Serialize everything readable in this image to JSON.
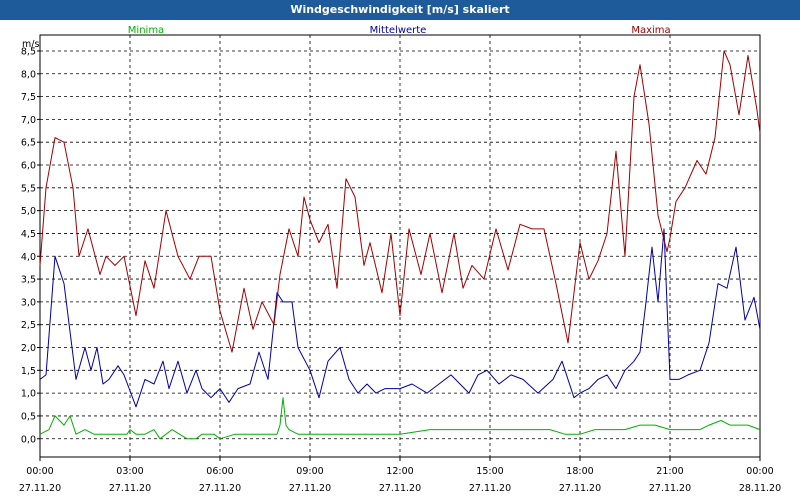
{
  "window": {
    "title": "Windgeschwindigkeit [m/s] skaliert"
  },
  "colors": {
    "titlebar": "#1e5b9a",
    "min": "#00b000",
    "mean": "#0000a0",
    "max": "#a00000",
    "grid": "#000000"
  },
  "chart_data": {
    "type": "line",
    "title": "Windgeschwindigkeit [m/s] skaliert",
    "ylabel": "m/s",
    "xlabel": "",
    "ylim": [
      -0.4,
      8.85
    ],
    "xlim": [
      0,
      24
    ],
    "grid": "dashed",
    "y_ticks": [
      {
        "value": 0.0,
        "label": "0,0"
      },
      {
        "value": 0.5,
        "label": "0,5"
      },
      {
        "value": 1.0,
        "label": "1,0"
      },
      {
        "value": 1.5,
        "label": "1,5"
      },
      {
        "value": 2.0,
        "label": "2,0"
      },
      {
        "value": 2.5,
        "label": "2,5"
      },
      {
        "value": 3.0,
        "label": "3,0"
      },
      {
        "value": 3.5,
        "label": "3,5"
      },
      {
        "value": 4.0,
        "label": "4,0"
      },
      {
        "value": 4.5,
        "label": "4,5"
      },
      {
        "value": 5.0,
        "label": "5,0"
      },
      {
        "value": 5.5,
        "label": "5,5"
      },
      {
        "value": 6.0,
        "label": "6,0"
      },
      {
        "value": 6.5,
        "label": "6,5"
      },
      {
        "value": 7.0,
        "label": "7,0"
      },
      {
        "value": 7.5,
        "label": "7,5"
      },
      {
        "value": 8.0,
        "label": "8,0"
      },
      {
        "value": 8.5,
        "label": "8,5"
      }
    ],
    "x_ticks": [
      {
        "value": 0,
        "time": "00:00",
        "date": "27.11.20"
      },
      {
        "value": 3,
        "time": "03:00",
        "date": "27.11.20"
      },
      {
        "value": 6,
        "time": "06:00",
        "date": "27.11.20"
      },
      {
        "value": 9,
        "time": "09:00",
        "date": "27.11.20"
      },
      {
        "value": 12,
        "time": "12:00",
        "date": "27.11.20"
      },
      {
        "value": 15,
        "time": "15:00",
        "date": "27.11.20"
      },
      {
        "value": 18,
        "time": "18:00",
        "date": "27.11.20"
      },
      {
        "value": 21,
        "time": "21:00",
        "date": "27.11.20"
      },
      {
        "value": 24,
        "time": "00:00",
        "date": "28.11.20"
      }
    ],
    "series": [
      {
        "name": "Minima",
        "key": "min",
        "x": [
          0,
          0.3,
          0.5,
          0.8,
          1.0,
          1.2,
          1.5,
          1.8,
          2.2,
          2.6,
          2.9,
          3.0,
          3.2,
          3.5,
          3.8,
          4.0,
          4.4,
          4.9,
          5.2,
          5.4,
          5.8,
          6.0,
          6.5,
          7.0,
          7.5,
          7.9,
          8.0,
          8.1,
          8.2,
          8.3,
          8.6,
          9.0,
          9.4,
          10.0,
          11.0,
          12.0,
          13.0,
          14.0,
          15.0,
          16.0,
          17.0,
          17.5,
          18.0,
          18.5,
          19.0,
          19.5,
          20.0,
          20.5,
          21.0,
          21.5,
          22.0,
          22.3,
          22.7,
          23.0,
          23.3,
          23.6,
          24.0
        ],
        "values": [
          0.1,
          0.2,
          0.5,
          0.3,
          0.5,
          0.1,
          0.2,
          0.1,
          0.1,
          0.1,
          0.1,
          0.2,
          0.1,
          0.1,
          0.2,
          0.0,
          0.2,
          0.0,
          0.0,
          0.1,
          0.1,
          0.0,
          0.1,
          0.1,
          0.1,
          0.1,
          0.3,
          0.9,
          0.3,
          0.2,
          0.1,
          0.1,
          0.1,
          0.1,
          0.1,
          0.1,
          0.2,
          0.2,
          0.2,
          0.2,
          0.2,
          0.1,
          0.1,
          0.2,
          0.2,
          0.2,
          0.3,
          0.3,
          0.2,
          0.2,
          0.2,
          0.3,
          0.4,
          0.3,
          0.3,
          0.3,
          0.2
        ]
      },
      {
        "name": "Mittelwerte",
        "key": "mean",
        "x": [
          0,
          0.2,
          0.5,
          0.8,
          1.2,
          1.5,
          1.7,
          1.9,
          2.1,
          2.3,
          2.6,
          2.8,
          3.2,
          3.5,
          3.8,
          4.1,
          4.3,
          4.6,
          4.9,
          5.2,
          5.4,
          5.7,
          6.0,
          6.3,
          6.6,
          7.0,
          7.3,
          7.6,
          7.9,
          8.1,
          8.4,
          8.6,
          9.0,
          9.3,
          9.6,
          10.0,
          10.3,
          10.6,
          10.9,
          11.2,
          11.5,
          12.0,
          12.4,
          12.9,
          13.3,
          13.7,
          14.0,
          14.3,
          14.6,
          14.9,
          15.3,
          15.7,
          16.1,
          16.6,
          17.1,
          17.4,
          17.8,
          18.0,
          18.3,
          18.6,
          18.9,
          19.2,
          19.5,
          19.8,
          20.0,
          20.2,
          20.4,
          20.6,
          20.8,
          21.0,
          21.3,
          21.6,
          22.0,
          22.3,
          22.6,
          22.9,
          23.2,
          23.5,
          23.8,
          24.0
        ],
        "values": [
          1.3,
          1.4,
          4.0,
          3.4,
          1.3,
          2.0,
          1.5,
          2.0,
          1.2,
          1.3,
          1.6,
          1.4,
          0.7,
          1.3,
          1.2,
          1.7,
          1.1,
          1.7,
          1.0,
          1.5,
          1.1,
          0.9,
          1.1,
          0.8,
          1.1,
          1.2,
          1.9,
          1.3,
          3.2,
          3.0,
          3.0,
          2.0,
          1.5,
          0.9,
          1.7,
          2.0,
          1.3,
          1.0,
          1.2,
          1.0,
          1.1,
          1.1,
          1.2,
          1.0,
          1.2,
          1.4,
          1.2,
          1.0,
          1.4,
          1.5,
          1.2,
          1.4,
          1.3,
          1.0,
          1.3,
          1.7,
          0.9,
          1.0,
          1.1,
          1.3,
          1.4,
          1.1,
          1.5,
          1.7,
          1.9,
          3.0,
          4.2,
          3.0,
          4.6,
          1.3,
          1.3,
          1.4,
          1.5,
          2.1,
          3.4,
          3.3,
          4.2,
          2.6,
          3.1,
          2.4
        ]
      },
      {
        "name": "Maxima",
        "key": "max",
        "x": [
          0,
          0.2,
          0.5,
          0.8,
          1.1,
          1.3,
          1.6,
          1.8,
          2.0,
          2.2,
          2.5,
          2.8,
          3.2,
          3.5,
          3.8,
          4.2,
          4.6,
          5.0,
          5.3,
          5.7,
          6.0,
          6.4,
          6.8,
          7.1,
          7.4,
          7.8,
          8.0,
          8.3,
          8.6,
          8.8,
          9.0,
          9.3,
          9.6,
          9.9,
          10.2,
          10.5,
          10.8,
          11.0,
          11.4,
          11.7,
          12.0,
          12.3,
          12.7,
          13.0,
          13.4,
          13.8,
          14.1,
          14.4,
          14.8,
          15.2,
          15.6,
          16.0,
          16.4,
          16.8,
          17.2,
          17.6,
          18.0,
          18.3,
          18.6,
          18.9,
          19.2,
          19.5,
          19.8,
          20.0,
          20.3,
          20.6,
          20.9,
          21.0,
          21.2,
          21.5,
          21.9,
          22.2,
          22.5,
          22.8,
          23.0,
          23.3,
          23.6,
          23.9,
          24.0
        ],
        "values": [
          3.8,
          5.5,
          6.6,
          6.5,
          5.5,
          4.0,
          4.6,
          4.1,
          3.6,
          4.0,
          3.8,
          4.0,
          2.7,
          3.9,
          3.3,
          5.0,
          4.0,
          3.5,
          4.0,
          4.0,
          2.8,
          1.9,
          3.3,
          2.4,
          3.0,
          2.5,
          3.6,
          4.6,
          4.0,
          5.3,
          4.8,
          4.3,
          4.7,
          3.3,
          5.7,
          5.3,
          3.8,
          4.3,
          3.2,
          4.5,
          2.7,
          4.6,
          3.6,
          4.5,
          3.2,
          4.5,
          3.3,
          3.8,
          3.5,
          4.6,
          3.7,
          4.7,
          4.6,
          4.6,
          3.4,
          2.1,
          4.3,
          3.5,
          3.9,
          4.5,
          6.3,
          4.0,
          7.5,
          8.2,
          6.9,
          4.9,
          4.1,
          4.4,
          5.2,
          5.5,
          6.1,
          5.8,
          6.6,
          8.5,
          8.2,
          7.1,
          8.4,
          7.2,
          6.7
        ]
      }
    ]
  }
}
